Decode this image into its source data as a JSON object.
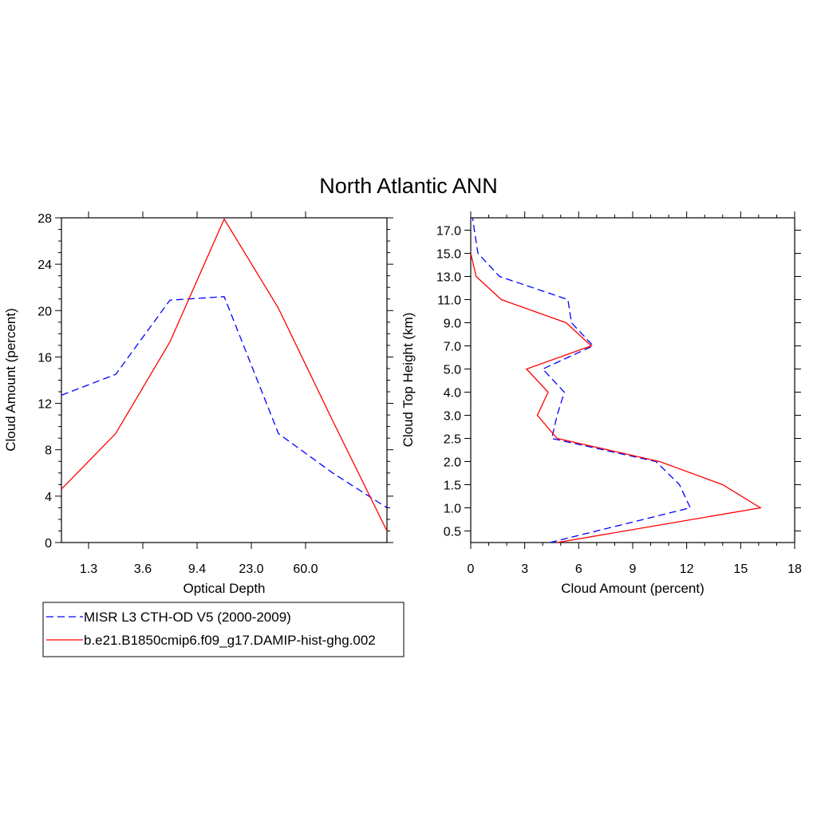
{
  "title": "North Atlantic ANN",
  "colors": {
    "misr": "#0000ff",
    "model": "#ff0000",
    "axes": "#000000"
  },
  "legend": {
    "items": [
      {
        "label": "MISR L3 CTH-OD V5 (2000-2009)",
        "color": "#0000ff",
        "dash": "dashed"
      },
      {
        "label": "b.e21.B1850cmip6.f09_g17.DAMIP-hist-ghg.002",
        "color": "#ff0000",
        "dash": "solid"
      }
    ]
  },
  "chart_data": [
    {
      "type": "line",
      "xlabel": "Optical Depth",
      "ylabel": "Cloud Amount (percent)",
      "categories": [
        "1.3",
        "3.6",
        "9.4",
        "23.0",
        "60.0"
      ],
      "x_scale": "category bins (tick at each bin centre)",
      "ylim": [
        0,
        28
      ],
      "y_ticks": [
        "0",
        "4",
        "8",
        "12",
        "16",
        "20",
        "24",
        "28"
      ],
      "series": [
        {
          "name": "MISR L3 CTH-OD V5 (2000-2009)",
          "x": [
            0,
            1,
            2,
            3,
            4,
            5,
            6
          ],
          "y": [
            12.7,
            14.5,
            20.9,
            21.2,
            9.4,
            6.0,
            3.0
          ]
        },
        {
          "name": "b.e21.B1850cmip6.f09_g17.DAMIP-hist-ghg.002",
          "x": [
            0,
            1,
            2,
            3,
            4,
            5,
            6
          ],
          "y": [
            4.6,
            9.4,
            17.3,
            27.9,
            20.2,
            10.5,
            1.0
          ]
        }
      ]
    },
    {
      "type": "line",
      "xlabel": "Cloud Amount (percent)",
      "ylabel": "Cloud Top Height (km)",
      "xlim": [
        0,
        18
      ],
      "x_ticks": [
        "0",
        "3",
        "6",
        "9",
        "12",
        "15",
        "18"
      ],
      "y_ticks": [
        "0.5",
        "1.0",
        "1.5",
        "2.0",
        "2.5",
        "3.0",
        "4.0",
        "5.0",
        "7.0",
        "9.0",
        "11.0",
        "13.0",
        "15.0",
        "17.0"
      ],
      "series": [
        {
          "name": "MISR L3 CTH-OD V5 (2000-2009)",
          "height": [
            "0.25",
            "1.0",
            "1.5",
            "2.0",
            "2.5",
            "3.0",
            "4.0",
            "5.0",
            "7.0",
            "9.0",
            "11.0",
            "13.0",
            "15.0",
            "17.0",
            "18.0"
          ],
          "amount": [
            4.4,
            12.2,
            11.6,
            10.3,
            4.5,
            4.8,
            5.2,
            4.0,
            6.8,
            5.6,
            5.4,
            1.6,
            0.4,
            0.2,
            0.1
          ]
        },
        {
          "name": "b.e21.B1850cmip6.f09_g17.DAMIP-hist-ghg.002",
          "height": [
            "0.25",
            "1.0",
            "1.5",
            "2.0",
            "2.5",
            "3.0",
            "4.0",
            "5.0",
            "7.0",
            "9.0",
            "11.0",
            "13.0",
            "15.0"
          ],
          "amount": [
            4.8,
            16.1,
            14.0,
            10.5,
            4.8,
            3.7,
            4.3,
            3.1,
            6.7,
            5.3,
            1.7,
            0.3,
            0.0
          ]
        }
      ]
    }
  ]
}
